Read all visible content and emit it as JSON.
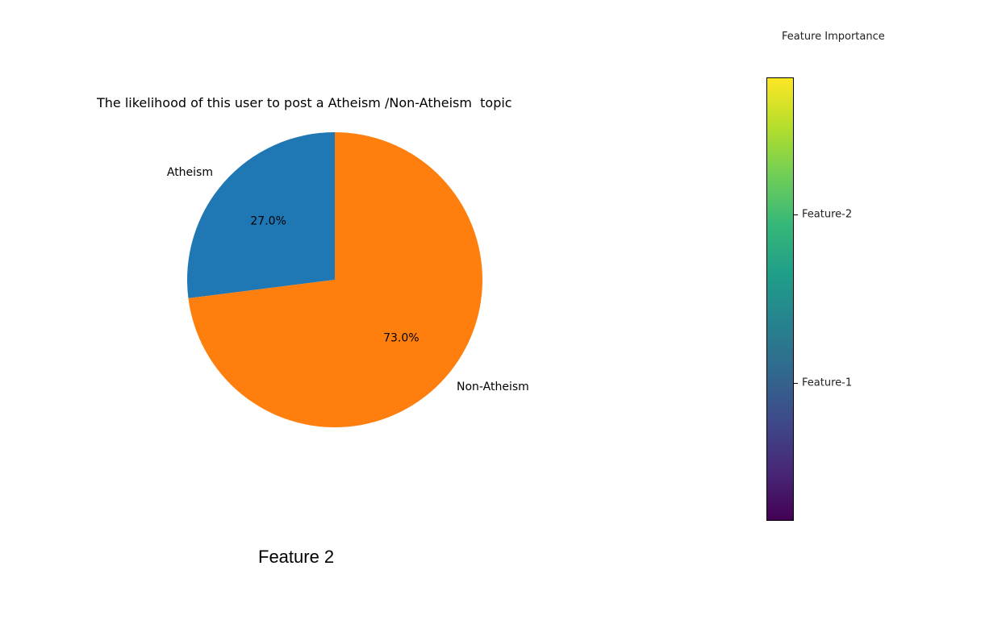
{
  "chart_data": {
    "type": "pie",
    "title": "The likelihood of this user to post a Atheism /Non-Atheism  topic",
    "slices": [
      {
        "label": "Atheism",
        "value": 27.0,
        "pct_label": "27.0%",
        "color": "#1f77b4"
      },
      {
        "label": "Non-Atheism",
        "value": 73.0,
        "pct_label": "73.0%",
        "color": "#ff7f0e"
      }
    ],
    "start": "top",
    "direction": "counterclockwise"
  },
  "colorbar": {
    "title": "Feature Importance",
    "colormap": "viridis",
    "ticks": [
      "Feature-2",
      "Feature-1"
    ]
  },
  "caption": "Feature 2"
}
